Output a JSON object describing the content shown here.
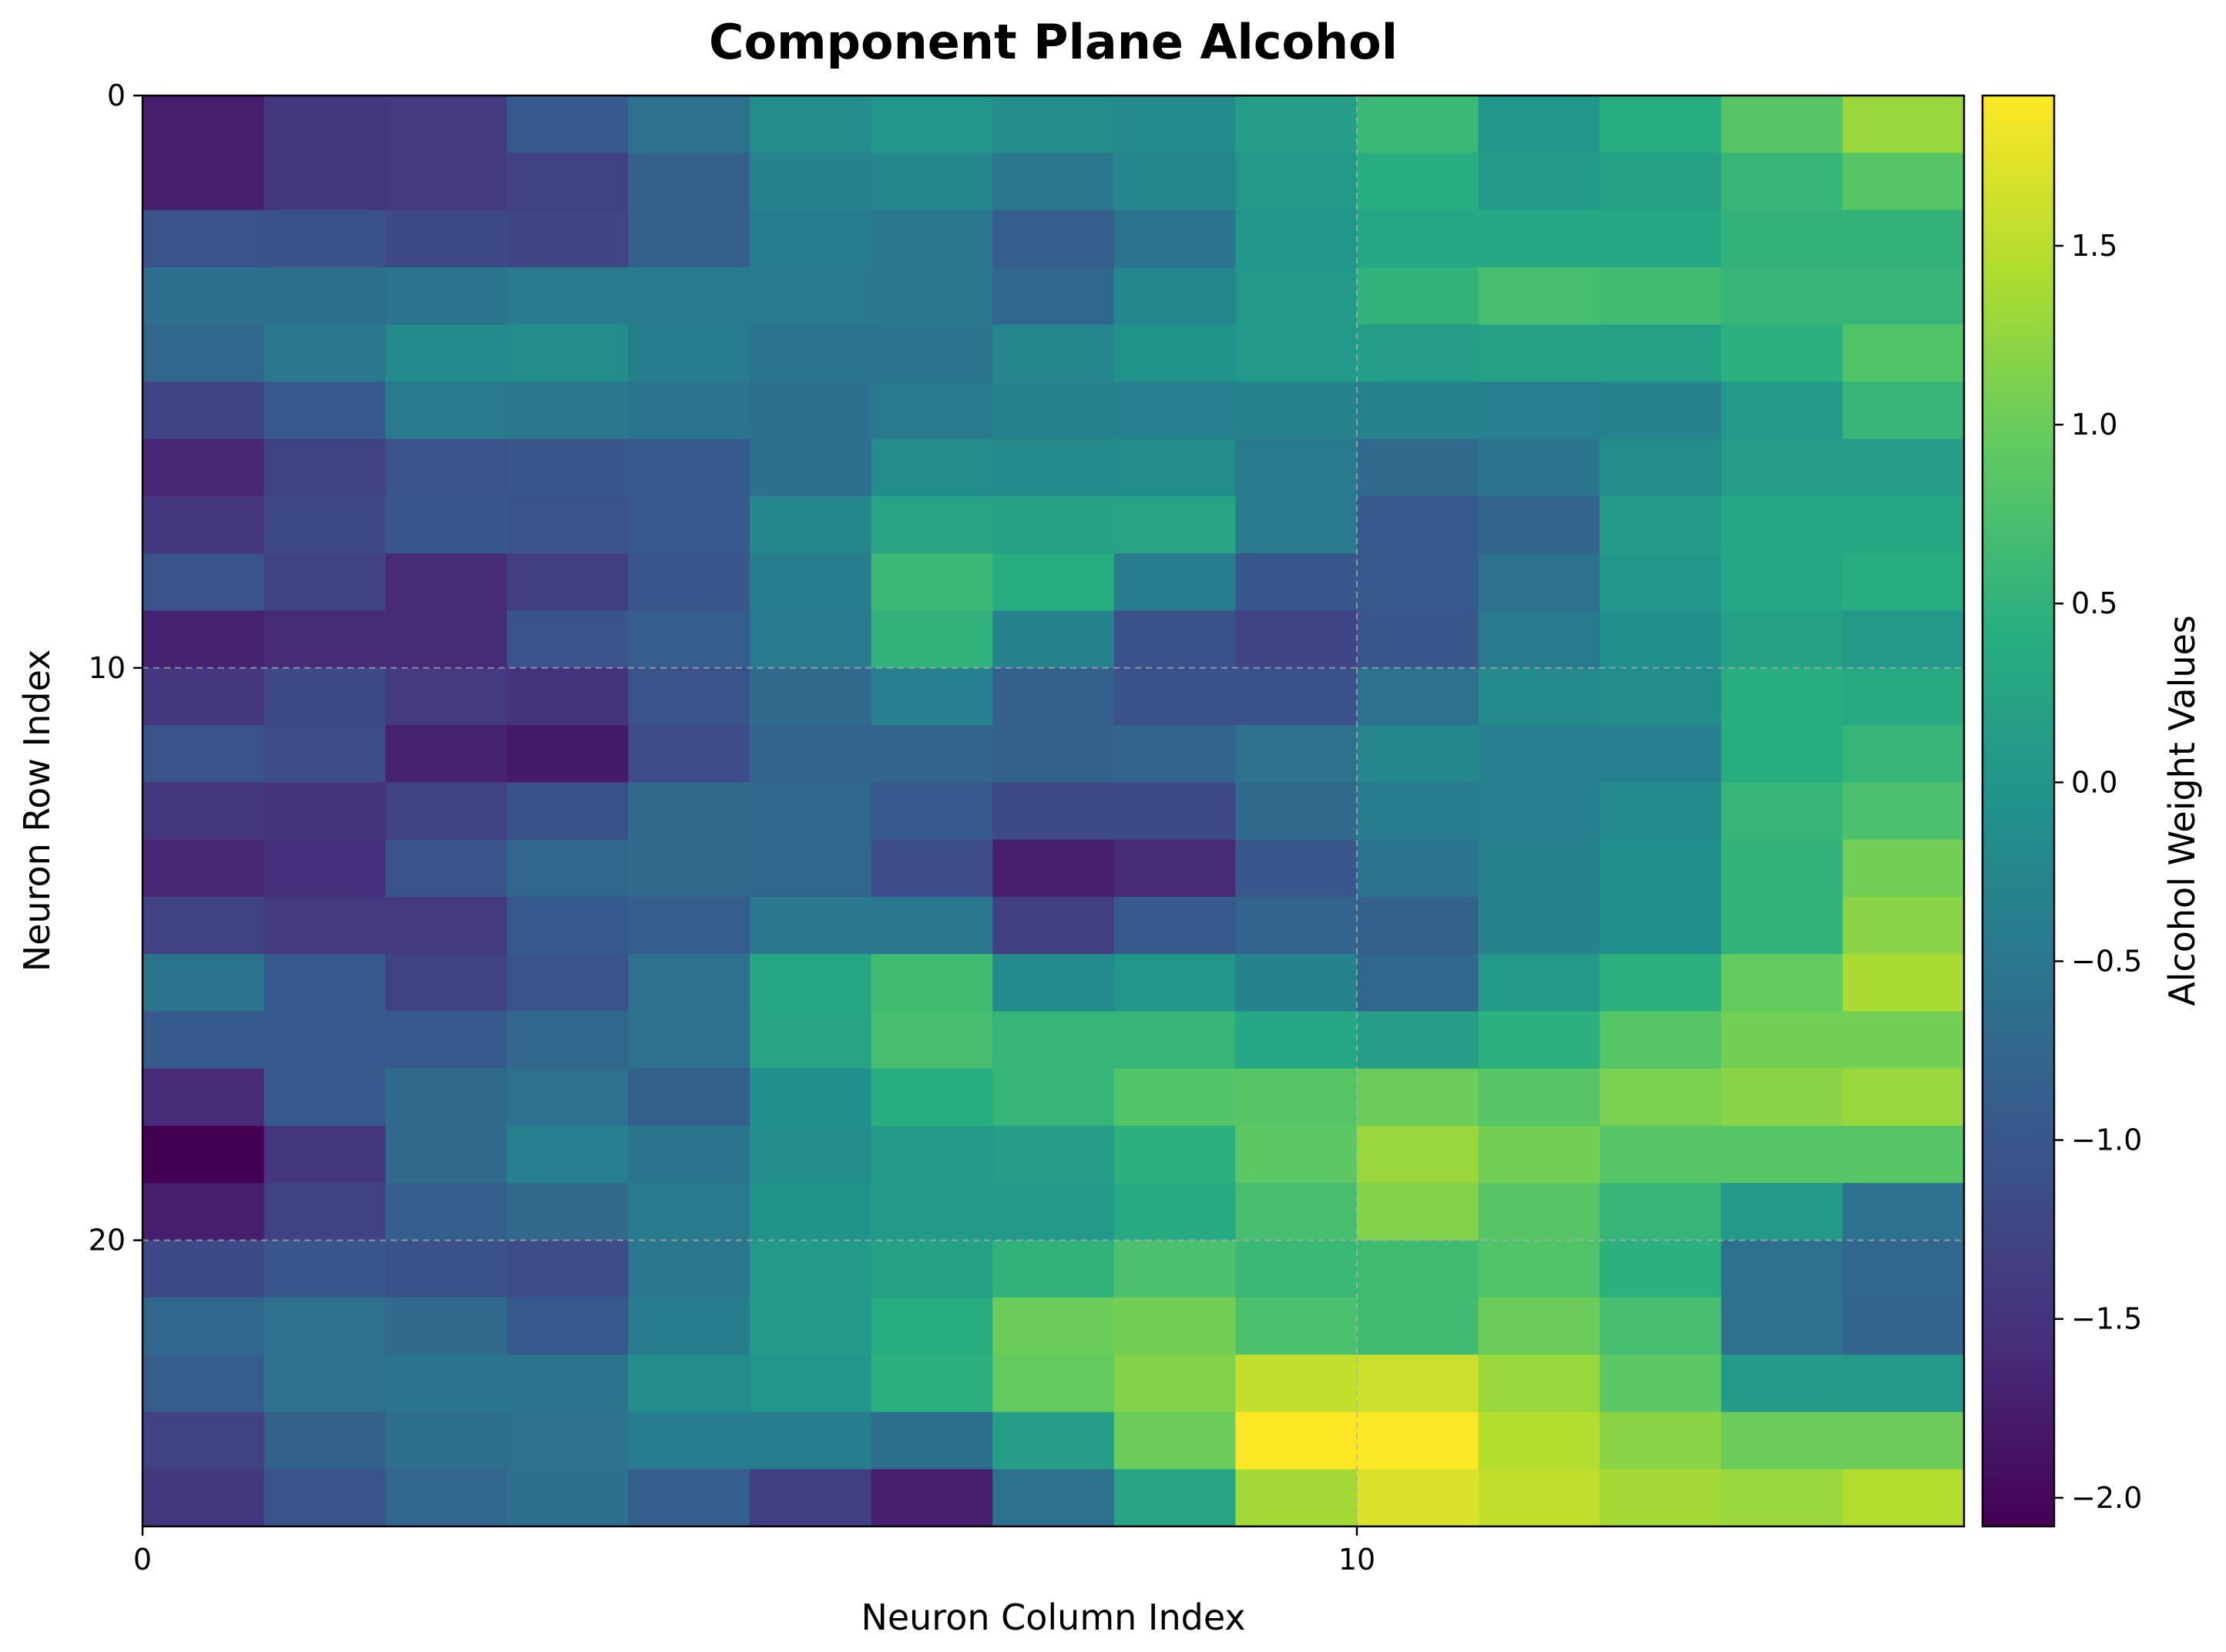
{
  "chart_data": {
    "type": "heatmap",
    "title": "Component Plane Alcohol",
    "xlabel": "Neuron Column Index",
    "ylabel": "Neuron Row Index",
    "colorbar_label": "Alcohol Weight Values",
    "colormap": "viridis",
    "xlim": [
      0,
      15
    ],
    "ylim": [
      25,
      0
    ],
    "vmin": -2.08,
    "vmax": 1.92,
    "x_ticks": [
      0,
      10
    ],
    "y_ticks": [
      0,
      10,
      20
    ],
    "colorbar_ticks": [
      "1.5",
      "1.0",
      "0.5",
      "0.0",
      "−0.5",
      "−1.0",
      "−1.5",
      "−2.0"
    ],
    "colorbar_tick_values": [
      1.5,
      1.0,
      0.5,
      0.0,
      -0.5,
      -1.0,
      -1.5,
      -2.0
    ],
    "grid": "dashed lines at ticks",
    "rows": 25,
    "cols": 15,
    "values": [
      [
        -1.75,
        -1.45,
        -1.4,
        -0.95,
        -0.6,
        -0.15,
        0.0,
        -0.15,
        -0.2,
        0.15,
        0.6,
        0.0,
        0.4,
        0.85,
        1.3
      ],
      [
        -1.75,
        -1.45,
        -1.4,
        -1.3,
        -0.85,
        -0.3,
        -0.25,
        -0.5,
        -0.25,
        0.05,
        0.4,
        0.1,
        0.2,
        0.55,
        0.85
      ],
      [
        -1.05,
        -1.1,
        -1.2,
        -1.25,
        -0.85,
        -0.4,
        -0.5,
        -0.9,
        -0.55,
        0.0,
        0.3,
        0.3,
        0.3,
        0.5,
        0.5
      ],
      [
        -0.65,
        -0.65,
        -0.55,
        -0.45,
        -0.45,
        -0.45,
        -0.5,
        -0.75,
        -0.25,
        0.05,
        0.5,
        0.7,
        0.65,
        0.55,
        0.55
      ],
      [
        -0.75,
        -0.5,
        -0.2,
        -0.15,
        -0.4,
        -0.55,
        -0.55,
        -0.25,
        -0.05,
        0.05,
        0.15,
        0.2,
        0.2,
        0.45,
        0.8
      ],
      [
        -1.25,
        -0.95,
        -0.45,
        -0.5,
        -0.55,
        -0.65,
        -0.45,
        -0.3,
        -0.35,
        -0.3,
        -0.3,
        -0.35,
        -0.3,
        0.05,
        0.55
      ],
      [
        -1.65,
        -1.3,
        -1.05,
        -1.0,
        -0.95,
        -0.65,
        -0.15,
        -0.2,
        -0.15,
        -0.45,
        -0.7,
        -0.55,
        -0.15,
        0.15,
        0.15
      ],
      [
        -1.45,
        -1.2,
        -1.0,
        -1.05,
        -0.95,
        -0.25,
        0.25,
        0.2,
        0.25,
        -0.45,
        -0.95,
        -0.8,
        0.1,
        0.3,
        0.3
      ],
      [
        -1.05,
        -1.3,
        -1.6,
        -1.35,
        -1.0,
        -0.4,
        0.6,
        0.4,
        -0.4,
        -1.0,
        -0.95,
        -0.6,
        0.0,
        0.3,
        0.4
      ],
      [
        -1.7,
        -1.6,
        -1.6,
        -1.05,
        -0.9,
        -0.45,
        0.5,
        -0.3,
        -1.1,
        -1.25,
        -1.0,
        -0.45,
        -0.1,
        0.2,
        0.05
      ],
      [
        -1.45,
        -1.2,
        -1.4,
        -1.5,
        -1.05,
        -0.7,
        -0.35,
        -0.85,
        -1.1,
        -1.1,
        -0.6,
        -0.2,
        -0.15,
        0.4,
        0.35
      ],
      [
        -1.05,
        -1.15,
        -1.7,
        -1.8,
        -1.15,
        -0.8,
        -0.8,
        -0.85,
        -0.8,
        -0.6,
        -0.25,
        -0.35,
        -0.35,
        0.4,
        0.55
      ],
      [
        -1.45,
        -1.5,
        -1.3,
        -1.1,
        -0.7,
        -0.75,
        -0.95,
        -1.2,
        -1.2,
        -0.7,
        -0.4,
        -0.35,
        -0.2,
        0.55,
        0.75
      ],
      [
        -1.65,
        -1.55,
        -1.05,
        -0.75,
        -0.7,
        -0.75,
        -1.15,
        -1.75,
        -1.6,
        -1.0,
        -0.55,
        -0.3,
        -0.1,
        0.5,
        1.05
      ],
      [
        -1.3,
        -1.4,
        -1.4,
        -0.95,
        -0.9,
        -0.5,
        -0.5,
        -1.35,
        -0.95,
        -0.8,
        -0.85,
        -0.3,
        -0.1,
        0.5,
        1.2
      ],
      [
        -0.55,
        -0.95,
        -1.3,
        -1.05,
        -0.6,
        0.3,
        0.65,
        -0.2,
        0.0,
        -0.3,
        -0.75,
        0.05,
        0.45,
        0.95,
        1.4
      ],
      [
        -0.95,
        -0.95,
        -0.95,
        -0.75,
        -0.6,
        0.25,
        0.7,
        0.55,
        0.55,
        0.3,
        0.15,
        0.45,
        0.85,
        1.05,
        1.05
      ],
      [
        -1.6,
        -0.95,
        -0.7,
        -0.6,
        -0.85,
        -0.1,
        0.4,
        0.55,
        0.8,
        0.85,
        1.0,
        0.85,
        1.1,
        1.2,
        1.3
      ],
      [
        -2.08,
        -1.45,
        -0.7,
        -0.35,
        -0.55,
        -0.15,
        0.05,
        0.15,
        0.45,
        0.9,
        1.3,
        1.05,
        0.85,
        0.85,
        0.85
      ],
      [
        -1.75,
        -1.3,
        -0.9,
        -0.7,
        -0.45,
        -0.05,
        0.05,
        0.05,
        0.35,
        0.7,
        1.15,
        0.85,
        0.55,
        0.05,
        -0.6
      ],
      [
        -1.2,
        -1.0,
        -1.1,
        -1.15,
        -0.5,
        0.05,
        0.2,
        0.5,
        0.75,
        0.6,
        0.65,
        0.8,
        0.45,
        -0.6,
        -0.75
      ],
      [
        -0.75,
        -0.6,
        -0.7,
        -0.95,
        -0.4,
        0.05,
        0.4,
        1.0,
        1.05,
        0.75,
        0.65,
        1.0,
        0.7,
        -0.6,
        -0.8
      ],
      [
        -0.9,
        -0.6,
        -0.55,
        -0.55,
        -0.15,
        0.0,
        0.45,
        0.95,
        1.15,
        1.55,
        1.6,
        1.3,
        0.9,
        0.1,
        0.05
      ],
      [
        -1.3,
        -0.85,
        -0.65,
        -0.6,
        -0.4,
        -0.4,
        -0.65,
        0.15,
        1.0,
        1.92,
        1.9,
        1.45,
        1.2,
        1.0,
        1.0
      ],
      [
        -1.45,
        -1.05,
        -0.75,
        -0.65,
        -0.9,
        -1.35,
        -1.75,
        -0.6,
        0.25,
        1.35,
        1.7,
        1.55,
        1.35,
        1.3,
        1.45
      ]
    ]
  }
}
